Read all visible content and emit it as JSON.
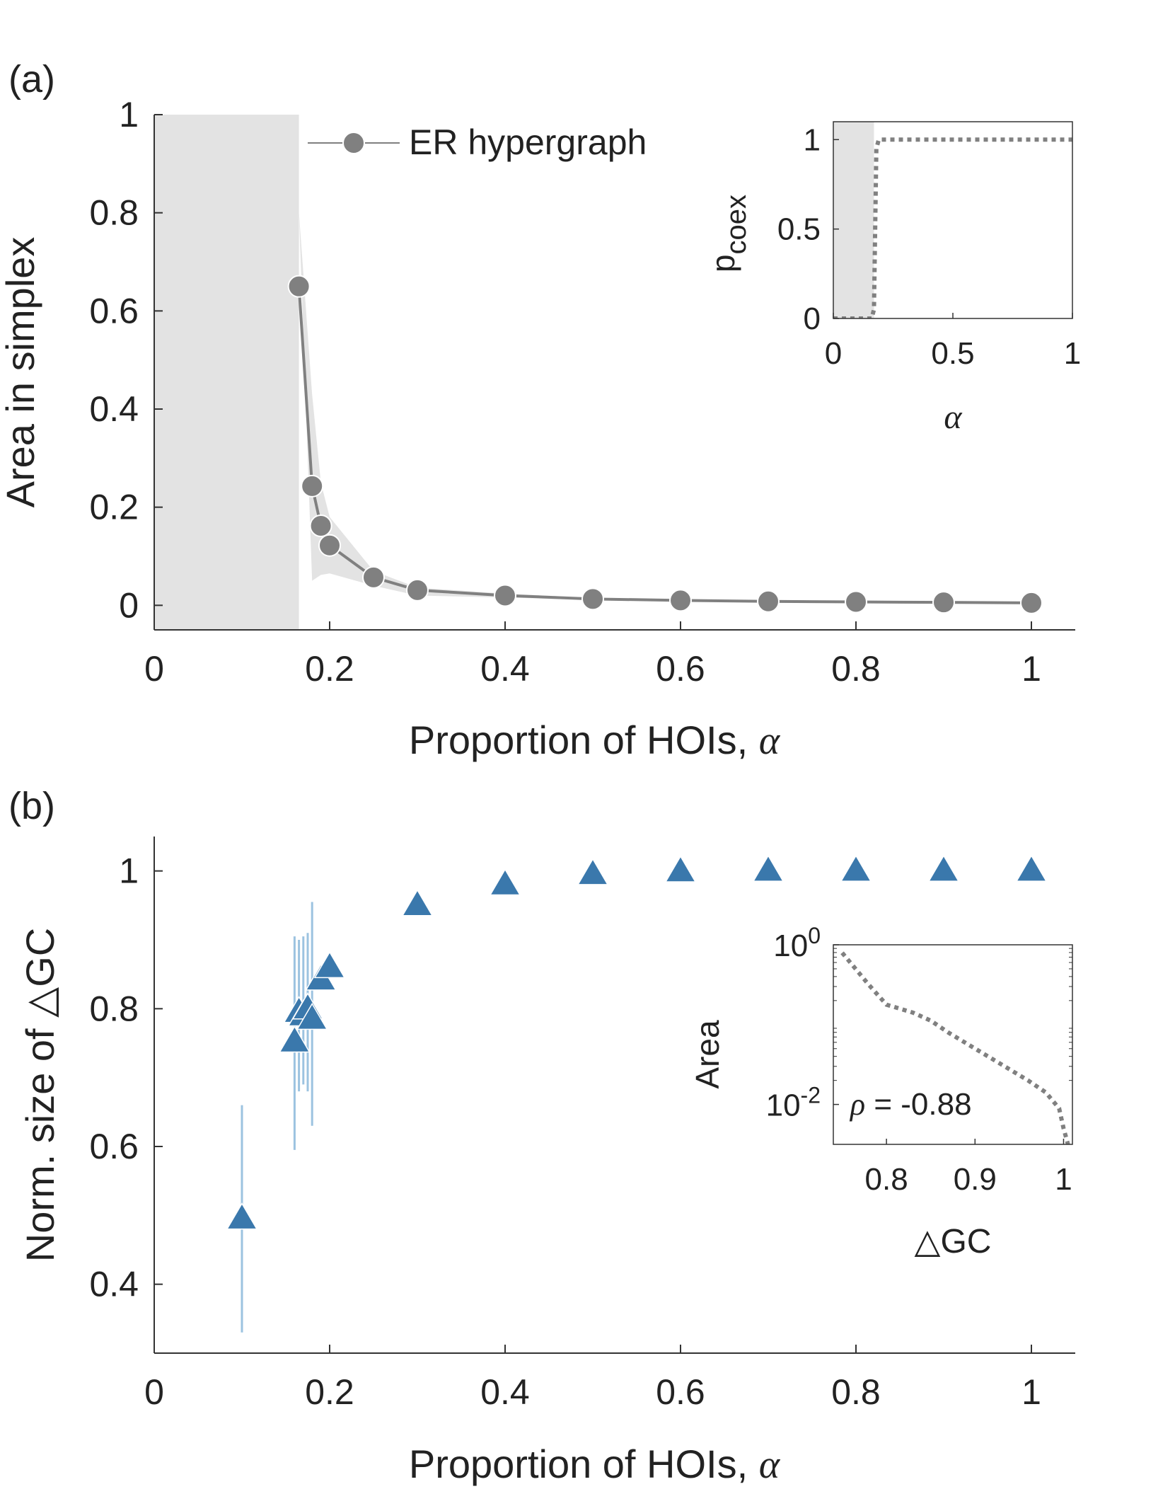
{
  "chart_data": [
    {
      "panel_label": "(a)",
      "type": "line",
      "xlabel": "Proportion of HOIs, ",
      "xlabel_symbol": "α",
      "ylabel": "Area in simplex",
      "xlim": [
        0,
        1.05
      ],
      "ylim": [
        -0.05,
        1
      ],
      "xticks": [
        "0",
        "0.2",
        "0.4",
        "0.6",
        "0.8",
        "1"
      ],
      "xtick_values": [
        0,
        0.2,
        0.4,
        0.6,
        0.8,
        1
      ],
      "yticks": [
        "0",
        "0.2",
        "0.4",
        "0.6",
        "0.8",
        "1"
      ],
      "ytick_values": [
        0,
        0.2,
        0.4,
        0.6,
        0.8,
        1
      ],
      "shaded_region": {
        "x0": 0,
        "x1": 0.165
      },
      "series": [
        {
          "name": "ER hypergraph",
          "x": [
            0.165,
            0.18,
            0.19,
            0.2,
            0.25,
            0.3,
            0.4,
            0.5,
            0.6,
            0.7,
            0.8,
            0.9,
            1.0
          ],
          "y": [
            0.65,
            0.243,
            0.162,
            0.122,
            0.057,
            0.031,
            0.02,
            0.013,
            0.01,
            0.008,
            0.007,
            0.006,
            0.005
          ],
          "band_low": [
            0.8,
            0.05,
            0.062,
            0.065,
            0.04,
            0.02,
            0.016,
            0.011,
            0.008,
            0.007,
            0.006,
            0.005,
            0.004
          ],
          "band_high": [
            0.8,
            0.43,
            0.25,
            0.18,
            0.07,
            0.036,
            0.024,
            0.015,
            0.012,
            0.01,
            0.008,
            0.007,
            0.006
          ],
          "color": "#808080"
        }
      ],
      "legend": {
        "placement": "top-center",
        "entry": "ER hypergraph"
      },
      "inset": {
        "type": "line",
        "ylabel": "p",
        "ylabel_sub": "coex",
        "xlabel_symbol": "α",
        "xlim": [
          0,
          1
        ],
        "ylim": [
          0,
          1.1
        ],
        "xticks": [
          "0",
          "0.5",
          "1"
        ],
        "xtick_values": [
          0,
          0.5,
          1
        ],
        "yticks": [
          "0",
          "0.5",
          "1"
        ],
        "ytick_values": [
          0,
          0.5,
          1
        ],
        "shaded_region": {
          "x0": 0,
          "x1": 0.17
        },
        "x": [
          0,
          0.16,
          0.17,
          0.18,
          0.19,
          1.0
        ],
        "y": [
          0,
          0,
          0.05,
          0.95,
          1.0,
          1.0
        ],
        "style": "dotted",
        "color": "#808080"
      }
    },
    {
      "panel_label": "(b)",
      "type": "scatter",
      "xlabel": "Proportion of HOIs, ",
      "xlabel_symbol": "α",
      "ylabel": "Norm. size of △GC",
      "xlim": [
        0,
        1.05
      ],
      "ylim": [
        0.3,
        1.05
      ],
      "xticks": [
        "0",
        "0.2",
        "0.4",
        "0.6",
        "0.8",
        "1"
      ],
      "xtick_values": [
        0,
        0.2,
        0.4,
        0.6,
        0.8,
        1
      ],
      "yticks": [
        "0.4",
        "0.6",
        "0.8",
        "1"
      ],
      "ytick_values": [
        0.4,
        0.6,
        0.8,
        1
      ],
      "series": [
        {
          "name": "Norm. size of △GC",
          "marker": "triangle",
          "color": "#3a78ac",
          "errorbar_color": "#9cc3e0",
          "x": [
            0.1,
            0.16,
            0.165,
            0.17,
            0.175,
            0.18,
            0.19,
            0.2,
            0.3,
            0.4,
            0.5,
            0.6,
            0.7,
            0.8,
            0.9,
            1.0
          ],
          "y": [
            0.495,
            0.752,
            0.795,
            0.79,
            0.8,
            0.785,
            0.842,
            0.86,
            0.95,
            0.98,
            0.995,
            0.999,
            1.0,
            1.0,
            1.0,
            1.0
          ],
          "err_low": [
            0.33,
            0.595,
            0.68,
            0.69,
            0.68,
            0.63,
            null,
            null,
            null,
            null,
            null,
            null,
            null,
            null,
            null,
            null
          ],
          "err_high": [
            0.66,
            0.905,
            0.9,
            0.905,
            0.91,
            0.955,
            null,
            null,
            null,
            null,
            null,
            null,
            null,
            null,
            null,
            null
          ]
        }
      ],
      "inset": {
        "type": "line",
        "ylabel": "Area",
        "xlabel": "△GC",
        "yscale": "log",
        "xlim": [
          0.74,
          1.01
        ],
        "ylim_exp": [
          -2.5,
          0
        ],
        "xticks": [
          "0.8",
          "0.9",
          "1"
        ],
        "xtick_values": [
          0.8,
          0.9,
          1.0
        ],
        "ytick_base": "10",
        "ytick_exponents": [
          "0",
          "-2"
        ],
        "ytick_values_exp": [
          0,
          -2
        ],
        "x": [
          0.75,
          0.78,
          0.8,
          0.83,
          0.85,
          0.87,
          0.9,
          0.93,
          0.96,
          0.98,
          0.995,
          1.0,
          1.005
        ],
        "y_exp": [
          -0.1,
          -0.5,
          -0.75,
          -0.85,
          -0.95,
          -1.1,
          -1.3,
          -1.5,
          -1.7,
          -1.85,
          -2.05,
          -2.3,
          -2.5
        ],
        "style": "dotted",
        "color": "#808080",
        "annotation_symbol": "ρ",
        "annotation_text": " = -0.88"
      }
    }
  ]
}
